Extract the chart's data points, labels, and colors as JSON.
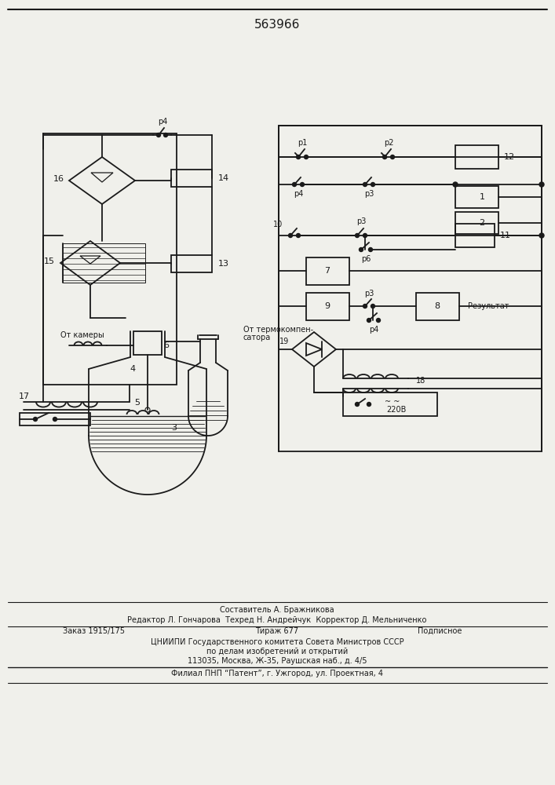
{
  "title": "563966",
  "bg_color": "#f0f0eb",
  "line_color": "#1a1a1a",
  "footer_lines": [
    [
      "Составитель А. Бражникова",
      353,
      223,
      "center"
    ],
    [
      "Редактор Л. Гончарова  Техред Н. Андрейчук  Корректор Д. Мельниченко",
      353,
      210,
      "center"
    ],
    [
      "Заказ 1915/175",
      120,
      196,
      "center"
    ],
    [
      "Тираж 677",
      353,
      196,
      "center"
    ],
    [
      "Подписное",
      560,
      196,
      "center"
    ],
    [
      "ЦНИИПИ Государственного комитета Совета Министров СССР",
      353,
      182,
      "center"
    ],
    [
      "по делам изобретений и открытий",
      353,
      170,
      "center"
    ],
    [
      "113035, Москва, Ж-35, Раушская наб., д. 4/5",
      353,
      158,
      "center"
    ],
    [
      "Филиал ПНП “Патент”, г. Ужгород, ул. Проектная, 4",
      353,
      142,
      "center"
    ]
  ]
}
